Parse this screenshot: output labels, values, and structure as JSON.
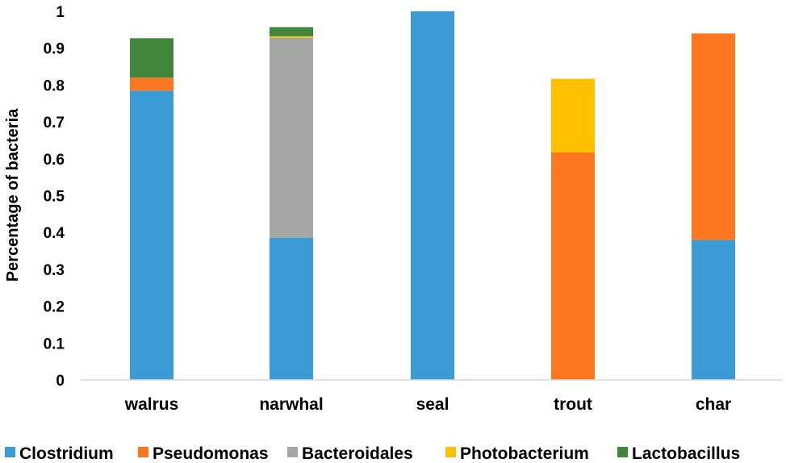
{
  "chart_data": {
    "type": "bar",
    "stacked": true,
    "title": "",
    "xlabel": "",
    "ylabel": "Percentage of bacteria",
    "ylim": [
      0,
      1
    ],
    "yticks": [
      "0",
      "0.1",
      "0.2",
      "0.3",
      "0.4",
      "0.5",
      "0.6",
      "0.7",
      "0.8",
      "0.9",
      "1"
    ],
    "grid": false,
    "legend_position": "bottom",
    "categories": [
      "walrus",
      "narwhal",
      "seal",
      "trout",
      "char"
    ],
    "series": [
      {
        "name": "Clostridium",
        "color": "#3a9bd5",
        "values": [
          0.785,
          0.386,
          1.0,
          0,
          0.38
        ]
      },
      {
        "name": "Pseudomonas",
        "color": "#fd7620",
        "values": [
          0.035,
          0,
          0,
          0.617,
          0.56
        ]
      },
      {
        "name": "Bacteroidales",
        "color": "#a6a6a6",
        "values": [
          0,
          0.542,
          0,
          0,
          0
        ]
      },
      {
        "name": "Photobacterium",
        "color": "#ffc000",
        "values": [
          0,
          0.004,
          0,
          0.2,
          0
        ]
      },
      {
        "name": "Lactobacillus",
        "color": "#41863b",
        "values": [
          0.107,
          0.025,
          0,
          0,
          0
        ]
      }
    ]
  }
}
